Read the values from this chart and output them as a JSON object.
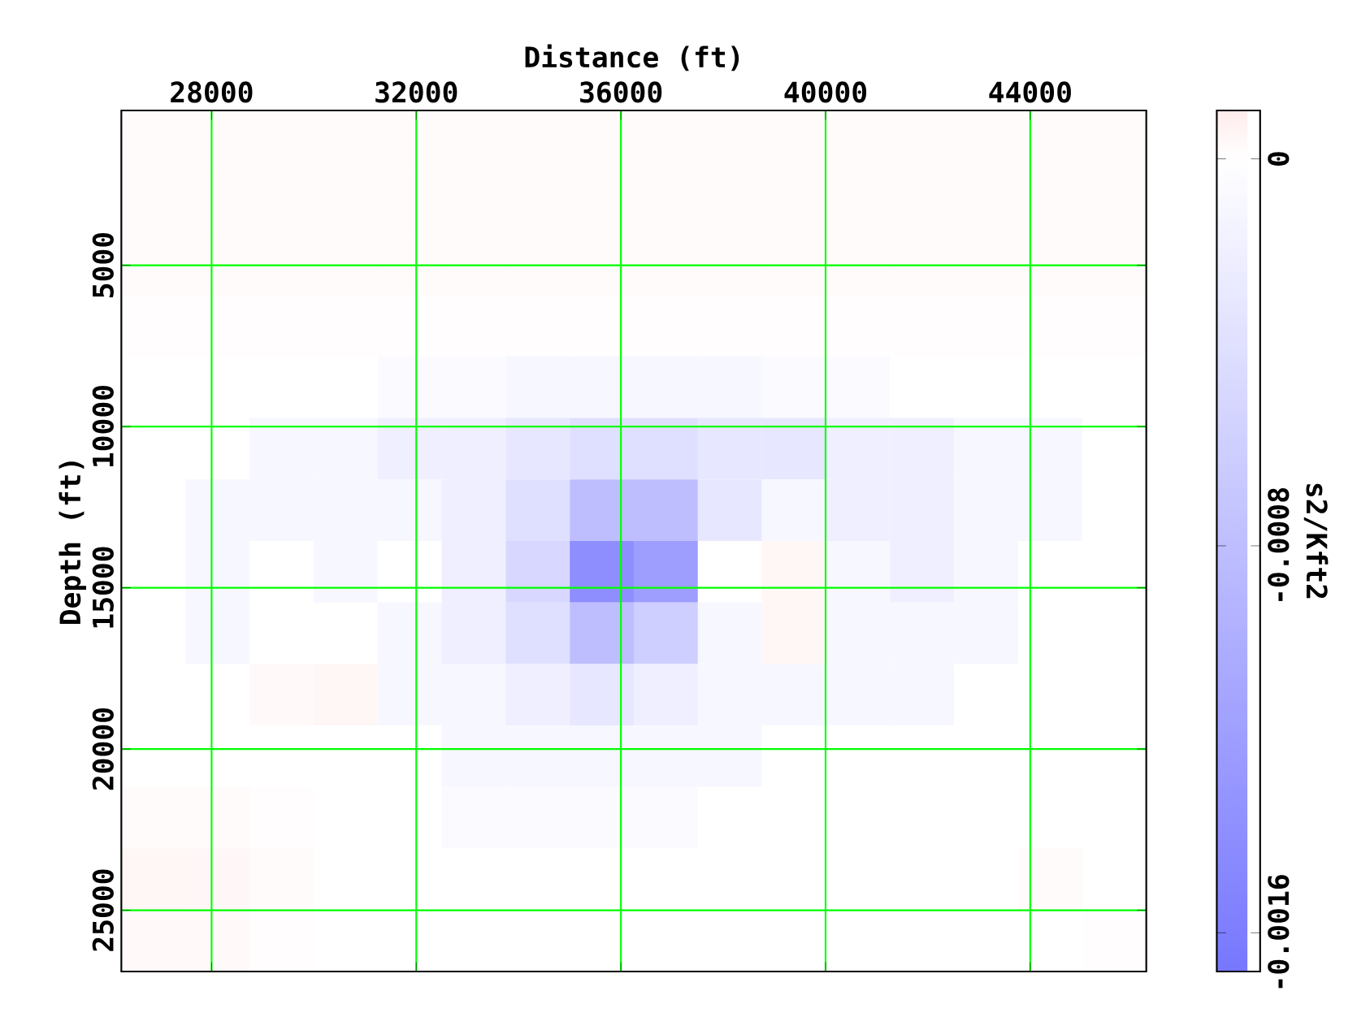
{
  "chart_data": {
    "type": "heatmap",
    "xlabel": "Distance (ft)",
    "ylabel": "Depth (ft)",
    "clabel": "s2/Kft2",
    "xlim": [
      26236,
      46268
    ],
    "ylim": [
      26900,
      200
    ],
    "xticks": [
      28000,
      32000,
      36000,
      40000,
      44000
    ],
    "yticks": [
      5000,
      10000,
      15000,
      20000,
      25000
    ],
    "clim": [
      -0.00168,
      0.0001
    ],
    "cticks": [
      -0.0016,
      -0.0008,
      0
    ],
    "grid": true,
    "cells": [
      [
        2e-05,
        2e-05,
        2e-05,
        2e-05,
        2e-05,
        2e-05,
        2e-05,
        2e-05,
        2e-05,
        2e-05,
        2e-05,
        2e-05,
        2e-05,
        2e-05,
        2e-05,
        2e-05
      ],
      [
        2e-05,
        2e-05,
        2e-05,
        2e-05,
        2e-05,
        2e-05,
        2e-05,
        2e-05,
        2e-05,
        2e-05,
        2e-05,
        2e-05,
        2e-05,
        2e-05,
        2e-05,
        2e-05
      ],
      [
        2e-05,
        2e-05,
        2e-05,
        2e-05,
        2e-05,
        2e-05,
        2e-05,
        2e-05,
        2e-05,
        2e-05,
        2e-05,
        2e-05,
        2e-05,
        2e-05,
        2e-05,
        2e-05
      ],
      [
        1e-05,
        1e-05,
        1e-05,
        1e-05,
        1e-05,
        1e-05,
        1e-05,
        1e-05,
        1e-05,
        1e-05,
        1e-05,
        1e-05,
        1e-05,
        1e-05,
        1e-05,
        1e-05
      ],
      [
        0,
        0,
        0,
        0,
        -5e-05,
        -5e-05,
        -0.0001,
        -0.0001,
        -0.0001,
        -0.0001,
        -5e-05,
        -5e-05,
        0,
        0,
        0,
        0
      ],
      [
        0,
        0,
        -0.0001,
        -0.0001,
        -0.0002,
        -0.0002,
        -0.0003,
        -0.0004,
        -0.0004,
        -0.0003,
        -0.0003,
        -0.0002,
        -0.0002,
        -0.0001,
        -0.0001,
        0
      ],
      [
        0,
        -0.0001,
        -0.0001,
        -0.0001,
        -0.0001,
        -0.0002,
        -0.0004,
        -0.0008,
        -0.0008,
        -0.0003,
        -0.0001,
        -0.0002,
        -0.0002,
        -0.0001,
        -0.0001,
        0
      ],
      [
        0,
        -0.0001,
        0,
        -0.0001,
        0,
        -0.0002,
        -0.0005,
        -0.0014,
        -0.0012,
        0,
        5e-05,
        -0.0001,
        -0.0002,
        -0.0001,
        0,
        0
      ],
      [
        0,
        -0.0001,
        0,
        0,
        -0.0001,
        -0.0002,
        -0.0004,
        -0.0008,
        -0.0006,
        -0.0001,
        5e-05,
        -0.0001,
        -0.0001,
        -0.0001,
        0,
        0
      ],
      [
        0,
        0,
        3e-05,
        5e-05,
        -0.0001,
        -0.0001,
        -0.0002,
        -0.0003,
        -0.0002,
        -0.0001,
        -0.0001,
        -0.0001,
        -0.0001,
        0,
        0,
        0
      ],
      [
        0,
        0,
        0,
        0,
        0,
        -0.0001,
        -0.0001,
        -0.0001,
        -0.0001,
        -0.0001,
        0,
        0,
        0,
        0,
        0,
        0
      ],
      [
        2e-05,
        2e-05,
        1e-05,
        0,
        0,
        -5e-05,
        -5e-05,
        -5e-05,
        -5e-05,
        0,
        0,
        0,
        0,
        0,
        0,
        0
      ],
      [
        5e-05,
        4e-05,
        2e-05,
        0,
        0,
        0,
        0,
        0,
        0,
        0,
        0,
        0,
        0,
        0,
        2e-05,
        0
      ],
      [
        3e-05,
        3e-05,
        1e-05,
        0,
        0,
        0,
        0,
        0,
        0,
        0,
        0,
        0,
        0,
        0,
        0,
        1e-05
      ]
    ]
  }
}
